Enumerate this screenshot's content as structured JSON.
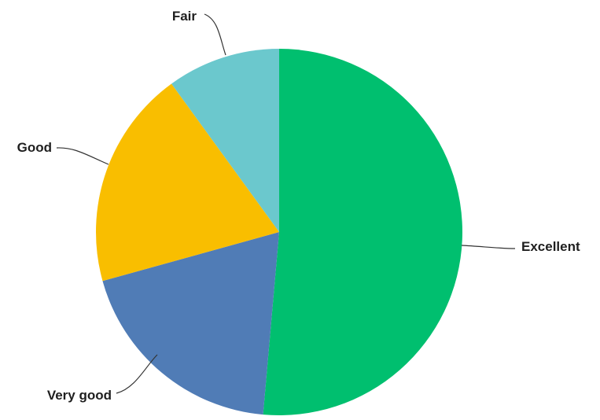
{
  "chart_data": {
    "type": "pie",
    "title": "",
    "slices": [
      {
        "label": "Excellent",
        "value": 51.4,
        "color": "#00bf6f"
      },
      {
        "label": "Very good",
        "value": 19.3,
        "color": "#507cb6"
      },
      {
        "label": "Good",
        "value": 19.3,
        "color": "#f9be00"
      },
      {
        "label": "Fair",
        "value": 10.0,
        "color": "#6bc8cd"
      }
    ],
    "legend": "none",
    "labels": "outside-with-leader-lines"
  }
}
